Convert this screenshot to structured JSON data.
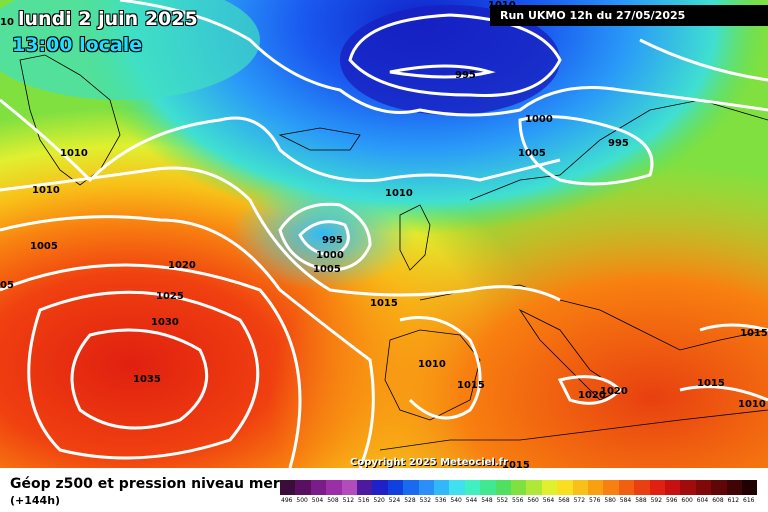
{
  "header": {
    "date": "lundi 2 juin 2025",
    "time": "13:00 locale",
    "run": "Run UKMO 12h du 27/05/2025",
    "edge_label": "10"
  },
  "copyright": "Copyright 2025 Meteociel.fr",
  "footer": {
    "title": "Géop z500 et pression niveau mer",
    "subtitle": "(+144h)"
  },
  "legend": {
    "values": [
      "496",
      "500",
      "504",
      "508",
      "512",
      "516",
      "520",
      "524",
      "528",
      "532",
      "536",
      "540",
      "544",
      "548",
      "552",
      "556",
      "560",
      "564",
      "568",
      "572",
      "576",
      "580",
      "584",
      "588",
      "592",
      "596",
      "600",
      "604",
      "608",
      "612",
      "616"
    ],
    "colors": [
      "#3a0d3a",
      "#5a1060",
      "#7a1c8a",
      "#9b2fa8",
      "#b34bbd",
      "#4b1aa0",
      "#2020c8",
      "#1040e0",
      "#1a6af0",
      "#2a90f8",
      "#30b8f8",
      "#40e0f0",
      "#40f0c0",
      "#40e890",
      "#50e060",
      "#80e040",
      "#b0e838",
      "#e0f030",
      "#f8e020",
      "#f8c018",
      "#f8a010",
      "#f88010",
      "#f06010",
      "#e84010",
      "#e02010",
      "#c81010",
      "#a00c0c",
      "#800808",
      "#600606",
      "#400404",
      "#200000"
    ]
  },
  "pressure_labels": [
    {
      "text": "995"
    },
    {
      "text": "1000"
    },
    {
      "text": "995"
    },
    {
      "text": "1005"
    },
    {
      "text": "1010"
    },
    {
      "text": "1010"
    },
    {
      "text": "1010"
    },
    {
      "text": "1005"
    },
    {
      "text": "995"
    },
    {
      "text": "1000"
    },
    {
      "text": "1005"
    },
    {
      "text": "1020"
    },
    {
      "text": "1025"
    },
    {
      "text": "1030"
    },
    {
      "text": "1035"
    },
    {
      "text": "1015"
    },
    {
      "text": "1010"
    },
    {
      "text": "1015"
    },
    {
      "text": "1020"
    },
    {
      "text": "1015"
    },
    {
      "text": "1015"
    },
    {
      "text": "1010"
    },
    {
      "text": "1020"
    },
    {
      "text": "05"
    },
    {
      "text": "1015"
    },
    {
      "text": "1010"
    }
  ]
}
